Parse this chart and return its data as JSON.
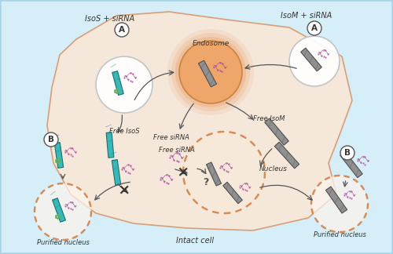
{
  "bg_color": "#d6eef7",
  "cell_color_light": "#fae8d8",
  "nucleus_border": "#d4824a",
  "circle_bg": "#ffffff",
  "teal_tube": "#3ab8b8",
  "gray_tube": "#909090",
  "rna_color": "#c060a0",
  "green_dot": "#60b060",
  "title_IsoS": "IsoS + siRNA",
  "title_IsoM": "IsoM + siRNA",
  "label_endosome": "Endosome",
  "label_free_IsoS": "Free IsoS",
  "label_free_IsoM": "Free IsoM",
  "label_free_siRNA": "Free siRNA",
  "label_free_siRNA2": "Free siRNA",
  "label_nucleus": "Nucleus",
  "label_intact_cell": "Intact cell",
  "label_purified_left": "Purified nucleus",
  "label_purified_right": "Purified nucleus",
  "label_question": "?"
}
